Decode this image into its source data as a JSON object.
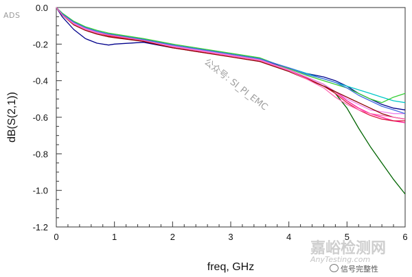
{
  "chart_data": {
    "type": "line",
    "title": "",
    "xlabel": "freq, GHz",
    "ylabel": "dB(S(2,1))",
    "xlim": [
      0,
      6
    ],
    "ylim": [
      -1.2,
      0.0
    ],
    "x_ticks": [
      "0",
      "1",
      "2",
      "3",
      "4",
      "5",
      "6"
    ],
    "y_ticks": [
      "0.0",
      "-0.2",
      "-0.4",
      "-0.6",
      "-0.8",
      "-1.0",
      "-1.2"
    ],
    "grid": false,
    "legend": "none",
    "x": [
      0,
      0.1,
      0.3,
      0.5,
      0.7,
      0.9,
      1.0,
      1.5,
      2.0,
      2.5,
      3.0,
      3.5,
      4.0,
      4.3,
      4.6,
      4.8,
      5.0,
      5.2,
      5.4,
      5.6,
      5.8,
      6.0
    ],
    "series": [
      {
        "color": "#006400",
        "values": [
          0,
          -0.04,
          -0.09,
          -0.12,
          -0.14,
          -0.15,
          -0.155,
          -0.18,
          -0.21,
          -0.235,
          -0.26,
          -0.28,
          -0.34,
          -0.38,
          -0.42,
          -0.47,
          -0.55,
          -0.66,
          -0.76,
          -0.85,
          -0.94,
          -1.02
        ]
      },
      {
        "color": "#00008b",
        "values": [
          0,
          -0.05,
          -0.12,
          -0.17,
          -0.195,
          -0.205,
          -0.2,
          -0.19,
          -0.22,
          -0.24,
          -0.265,
          -0.285,
          -0.33,
          -0.36,
          -0.38,
          -0.4,
          -0.43,
          -0.47,
          -0.5,
          -0.53,
          -0.55,
          -0.56
        ]
      },
      {
        "color": "#00c8c8",
        "values": [
          0,
          -0.03,
          -0.08,
          -0.11,
          -0.13,
          -0.145,
          -0.15,
          -0.175,
          -0.205,
          -0.23,
          -0.255,
          -0.28,
          -0.33,
          -0.36,
          -0.39,
          -0.41,
          -0.43,
          -0.45,
          -0.47,
          -0.49,
          -0.51,
          -0.52
        ]
      },
      {
        "color": "#32cd32",
        "values": [
          0,
          -0.03,
          -0.075,
          -0.105,
          -0.125,
          -0.14,
          -0.145,
          -0.17,
          -0.2,
          -0.225,
          -0.25,
          -0.275,
          -0.335,
          -0.37,
          -0.4,
          -0.42,
          -0.44,
          -0.47,
          -0.5,
          -0.52,
          -0.49,
          -0.47
        ]
      },
      {
        "color": "#ff1493",
        "values": [
          0,
          -0.035,
          -0.085,
          -0.115,
          -0.135,
          -0.15,
          -0.155,
          -0.18,
          -0.215,
          -0.24,
          -0.26,
          -0.29,
          -0.34,
          -0.38,
          -0.42,
          -0.46,
          -0.51,
          -0.55,
          -0.58,
          -0.6,
          -0.62,
          -0.63
        ]
      },
      {
        "color": "#dc143c",
        "values": [
          0,
          -0.04,
          -0.09,
          -0.12,
          -0.14,
          -0.155,
          -0.16,
          -0.185,
          -0.22,
          -0.245,
          -0.265,
          -0.29,
          -0.345,
          -0.385,
          -0.43,
          -0.47,
          -0.52,
          -0.56,
          -0.59,
          -0.61,
          -0.62,
          -0.62
        ]
      },
      {
        "color": "#ee82ee",
        "values": [
          0,
          -0.035,
          -0.085,
          -0.115,
          -0.135,
          -0.15,
          -0.155,
          -0.18,
          -0.21,
          -0.235,
          -0.26,
          -0.285,
          -0.34,
          -0.38,
          -0.42,
          -0.46,
          -0.5,
          -0.53,
          -0.56,
          -0.57,
          -0.58,
          -0.58
        ]
      },
      {
        "color": "#8b0000",
        "values": [
          0,
          -0.04,
          -0.095,
          -0.125,
          -0.145,
          -0.16,
          -0.165,
          -0.185,
          -0.22,
          -0.245,
          -0.27,
          -0.295,
          -0.35,
          -0.39,
          -0.43,
          -0.46,
          -0.49,
          -0.52,
          -0.55,
          -0.58,
          -0.6,
          -0.61
        ]
      },
      {
        "color": "#4169e1",
        "values": [
          0,
          -0.035,
          -0.08,
          -0.11,
          -0.13,
          -0.145,
          -0.15,
          -0.175,
          -0.205,
          -0.23,
          -0.255,
          -0.28,
          -0.33,
          -0.365,
          -0.39,
          -0.41,
          -0.44,
          -0.48,
          -0.51,
          -0.54,
          -0.56,
          -0.58
        ]
      },
      {
        "color": "#ff69b4",
        "values": [
          0,
          -0.04,
          -0.09,
          -0.12,
          -0.14,
          -0.15,
          -0.155,
          -0.18,
          -0.215,
          -0.24,
          -0.265,
          -0.29,
          -0.345,
          -0.39,
          -0.44,
          -0.49,
          -0.53,
          -0.56,
          -0.58,
          -0.59,
          -0.6,
          -0.61
        ]
      }
    ]
  },
  "labels": {
    "ads": "ADS",
    "watermark_diagonal": "公众号: SI_PI_EMC",
    "watermark_brand": "嘉峪检测网",
    "watermark_site": "AnyTesting.com",
    "watermark_sub": "信号完整性"
  }
}
